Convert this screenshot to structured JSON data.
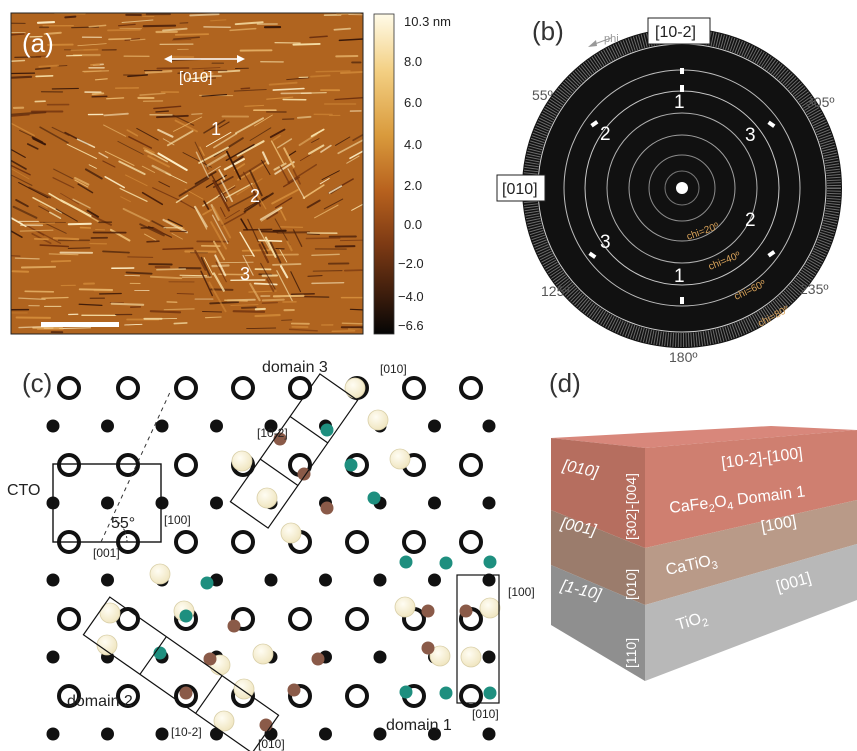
{
  "panel_a": {
    "label": "(a)",
    "direction_label": "[010]",
    "domain_labels": [
      "1",
      "2",
      "3"
    ],
    "colorbar": {
      "unit_label": "10.3 nm",
      "ticks": [
        "8.0",
        "6.0",
        "4.0",
        "2.0",
        "0.0",
        "−2.0",
        "−4.0",
        "−6.6"
      ],
      "colors": [
        "#fffbe8",
        "#f3cf82",
        "#d99a3c",
        "#b8621e",
        "#7d3a14",
        "#3b1c0c",
        "#050505"
      ]
    }
  },
  "panel_b": {
    "label": "(b)",
    "top_box": "[10-2]",
    "left_box": "[010]",
    "phi_label": "phi",
    "angle_labels": {
      "tl": "55º",
      "tr": "305º",
      "bl": "125º",
      "br": "235º",
      "bottom": "180º"
    },
    "chi_labels": [
      "chi=20º",
      "chi=40º",
      "chi=60º",
      "chi=80º"
    ],
    "pole_labels": [
      "1",
      "3",
      "2",
      "2",
      "3",
      "1"
    ]
  },
  "panel_c": {
    "label": "(c)",
    "cto_label": "CTO",
    "angle_label": "55°",
    "cell_labels": {
      "bottom": "[001]",
      "right": "[100]"
    },
    "domain3": {
      "title": "domain 3",
      "dir_a": "[010]",
      "dir_b": "[10-2]"
    },
    "domain2": {
      "title": "domain 2",
      "dir_a": "[10-2]",
      "dir_b": "[010]"
    },
    "domain1": {
      "title": "domain 1",
      "dir_a": "[100]",
      "dir_b": "[010]"
    },
    "colors": {
      "teal": "#1e8f7f",
      "brown": "#8a5a48",
      "cream": "#f7f0d6"
    }
  },
  "panel_d": {
    "label": "(d)",
    "top_label": "[10-2]-[100]",
    "left_labels": [
      "[010]",
      "[001]",
      "[1-10]"
    ],
    "side_labels": [
      "[302]-[004]",
      "[010]",
      "[110]"
    ],
    "layer1": {
      "pre": "CaFe",
      "s1": "2",
      "mid": "O",
      "s2": "4",
      "post": " Domain 1"
    },
    "layer2": {
      "pre": "CaTiO",
      "s1": "3",
      "dir": "[100]"
    },
    "layer3": {
      "pre": "TiO",
      "s1": "2",
      "dir": "[001]"
    },
    "colors": {
      "top": "#d8877b",
      "l1_front": "#b66e5f",
      "l1_side": "#cf7f70",
      "l2_front": "#9b7c6c",
      "l2_side": "#b99a88",
      "l3_front": "#8f8f8f",
      "l3_side": "#b8b8b8"
    }
  }
}
